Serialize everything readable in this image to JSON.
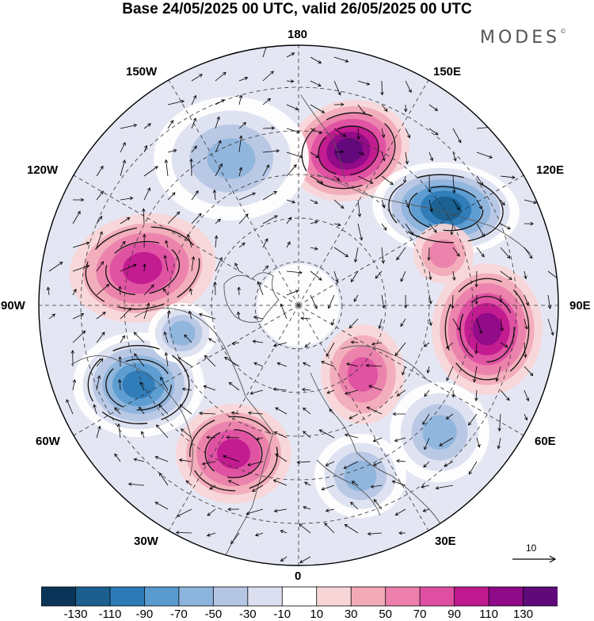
{
  "title": "Base 24/05/2025 00 UTC, valid 26/05/2025 00 UTC",
  "brand": {
    "name": "MODES",
    "mark": "©"
  },
  "longitude_labels": [
    "180",
    "150E",
    "120E",
    "90E",
    "60E",
    "30E",
    "0",
    "30W",
    "60W",
    "90W",
    "120W",
    "150W"
  ],
  "vector_reference": {
    "label": "10"
  },
  "colorbar": {
    "ticks": [
      "-130",
      "-110",
      "-90",
      "-70",
      "-50",
      "-30",
      "-10",
      "10",
      "30",
      "50",
      "70",
      "90",
      "110",
      "130"
    ],
    "colors": [
      "#0b3558",
      "#1a5f8e",
      "#2c7bb6",
      "#5a9bcf",
      "#8db4dc",
      "#b5c6e4",
      "#dcdff0",
      "#ffffff",
      "#f8d6d8",
      "#f2aab8",
      "#ec7fab",
      "#de4fa2",
      "#c0188e",
      "#8e0a88",
      "#5e0a7a"
    ]
  },
  "anomaly_centers": [
    {
      "sign": "positive",
      "value": 120
    },
    {
      "sign": "negative",
      "value": -120
    },
    {
      "sign": "positive",
      "value": 90
    },
    {
      "sign": "positive",
      "value": 80
    },
    {
      "sign": "negative",
      "value": -100
    },
    {
      "sign": "positive",
      "value": 70
    },
    {
      "sign": "negative",
      "value": -60
    },
    {
      "sign": "negative",
      "value": -60
    },
    {
      "sign": "positive",
      "value": 50
    },
    {
      "sign": "negative",
      "value": -50
    },
    {
      "sign": "negative",
      "value": -50
    },
    {
      "sign": "positive",
      "value": 40
    }
  ]
}
